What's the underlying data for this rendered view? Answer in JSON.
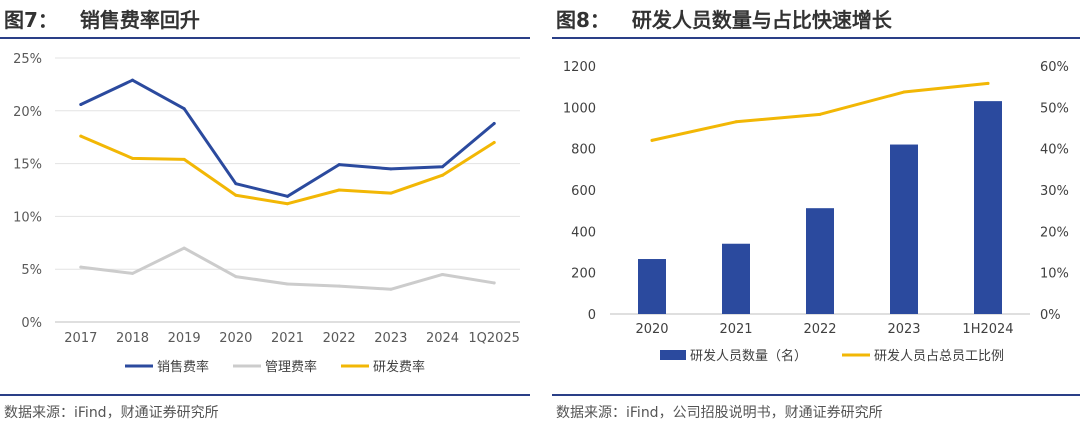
{
  "left": {
    "fig_no": "图7：",
    "title": "销售费率回升",
    "source": "数据来源：iFind，财通证券研究所",
    "chart_data": {
      "type": "line",
      "categories": [
        "2017",
        "2018",
        "2019",
        "2020",
        "2021",
        "2022",
        "2023",
        "2024",
        "1Q2025"
      ],
      "y_ticks": [
        "0%",
        "5%",
        "10%",
        "15%",
        "20%",
        "25%"
      ],
      "ylim": [
        0,
        25
      ],
      "grid": true,
      "legend_position": "bottom",
      "series": [
        {
          "name": "销售费率",
          "color": "#2b4a9e",
          "values": [
            20.6,
            22.9,
            20.2,
            13.1,
            11.9,
            14.9,
            14.5,
            14.7,
            18.8
          ]
        },
        {
          "name": "管理费率",
          "color": "#cccccc",
          "values": [
            5.2,
            4.6,
            7.0,
            4.3,
            3.6,
            3.4,
            3.1,
            4.5,
            3.7
          ]
        },
        {
          "name": "研发费率",
          "color": "#f2b705",
          "values": [
            17.6,
            15.5,
            15.4,
            12.0,
            11.2,
            12.5,
            12.2,
            13.9,
            17.0
          ]
        }
      ]
    }
  },
  "right": {
    "fig_no": "图8：",
    "title": "研发人员数量与占比快速增长",
    "source": "数据来源：iFind，公司招股说明书，财通证券研究所",
    "chart_data": {
      "type": "bar",
      "categories": [
        "2020",
        "2021",
        "2022",
        "2023",
        "1H2024"
      ],
      "y_ticks": [
        "0",
        "200",
        "400",
        "600",
        "800",
        "1000",
        "1200"
      ],
      "ylim": [
        0,
        1200
      ],
      "y2_ticks": [
        "0%",
        "10%",
        "20%",
        "30%",
        "40%",
        "50%",
        "60%"
      ],
      "y2lim": [
        0,
        60
      ],
      "grid": false,
      "legend_position": "bottom",
      "series": [
        {
          "name": "研发人员数量（名）",
          "kind": "bar",
          "axis": "left",
          "color": "#2b4a9e",
          "values": [
            266,
            340,
            512,
            820,
            1030
          ]
        },
        {
          "name": "研发人员占总员工比例",
          "kind": "line",
          "axis": "right",
          "color": "#f2b705",
          "values": [
            42,
            46.5,
            48.3,
            53.7,
            55.8
          ]
        }
      ]
    }
  }
}
